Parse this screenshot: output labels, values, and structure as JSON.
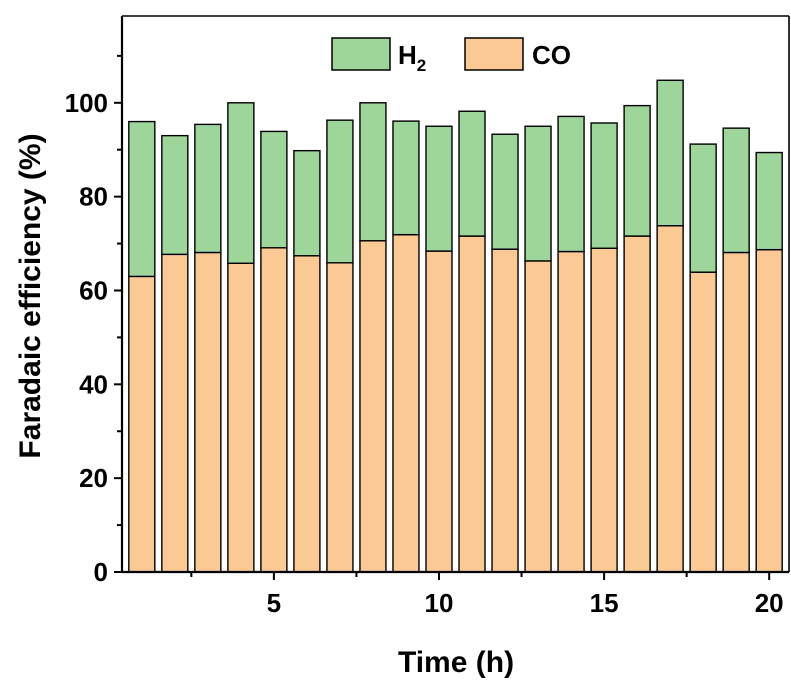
{
  "chart_data": {
    "type": "bar",
    "stacked": true,
    "x": [
      1,
      2,
      3,
      4,
      5,
      6,
      7,
      8,
      9,
      10,
      11,
      12,
      13,
      14,
      15,
      16,
      17,
      18,
      19,
      20
    ],
    "series": [
      {
        "name": "CO",
        "color": "#fbc994",
        "values": [
          63,
          67.7,
          68.1,
          65.8,
          69.1,
          67.4,
          65.9,
          70.6,
          71.9,
          68.4,
          71.6,
          68.8,
          66.3,
          68.3,
          69,
          71.6,
          73.8,
          63.9,
          68.1,
          68.7
        ]
      },
      {
        "name": "H2",
        "color": "#9ed59b",
        "values": [
          33,
          25.3,
          27.3,
          34.2,
          24.8,
          22.4,
          30.4,
          29.4,
          24.2,
          26.6,
          26.6,
          24.5,
          28.7,
          28.8,
          26.7,
          27.8,
          31,
          27.3,
          26.5,
          20.7
        ]
      }
    ],
    "xlabel": "Time (h)",
    "ylabel": "Faradaic efficiency (%)",
    "xlim": [
      0.4,
      20.6
    ],
    "ylim": [
      0,
      118.5
    ],
    "xticks": [
      "5",
      "10",
      "15",
      "20"
    ],
    "yticks": [
      "0",
      "20",
      "40",
      "60",
      "80",
      "100"
    ],
    "legend": {
      "position": "top-center",
      "items": [
        {
          "label": "H",
          "subscript": "2",
          "color": "#9ed59b"
        },
        {
          "label": "CO",
          "subscript": "",
          "color": "#fbc994"
        }
      ]
    },
    "grid": false
  }
}
